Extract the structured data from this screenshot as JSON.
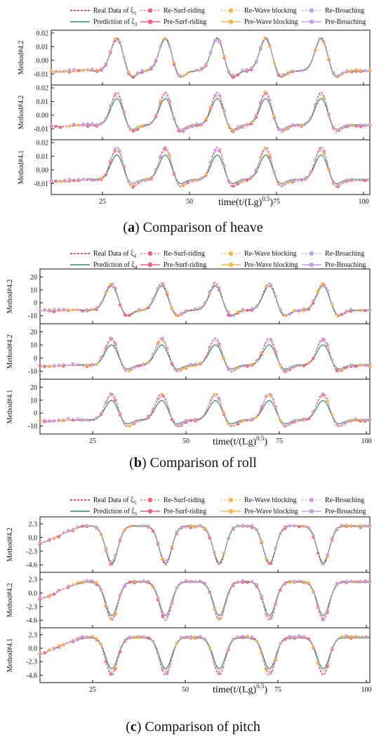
{
  "legend": {
    "real": "Real Data of ξ",
    "pred": "Prediction of ξ",
    "re_surf": "Re-Surf-riding",
    "re_wave": "Re-Wave blocking",
    "re_broach": "Re-Broaching",
    "pre_surf": "Pre-Surf-riding",
    "pre_wave": "Pre-Wave blocking",
    "pre_broach": "Pre-Broaching"
  },
  "colors": {
    "real": "#c2185b",
    "pred": "#2e8b6e",
    "surf": "#f0607a",
    "wave": "#f5b84a",
    "broach": "#c9a0e8"
  },
  "xlabel": "time(t/(Lg)",
  "xlabel_sup": "0.5",
  "captions": [
    {
      "letter": "a",
      "open": "(",
      "close": ")",
      "text": " Comparison of heave"
    },
    {
      "letter": "b",
      "open": "(",
      "close": ")",
      "text": " Comparison of roll"
    },
    {
      "letter": "c",
      "open": "(",
      "close": ")",
      "text": " Comparison of pitch"
    }
  ],
  "chart_data": [
    {
      "type": "line",
      "title": "",
      "variable_subscript": "3",
      "x_ticks": [
        "25",
        "50",
        "75",
        "100"
      ],
      "xlim": [
        8,
        100
      ],
      "ylim": [
        -0.016,
        0.02
      ],
      "y_ticks": [
        "0.02",
        "0.01",
        "0.00",
        "-0.01"
      ],
      "y_tick_values": [
        0.02,
        0.01,
        0.0,
        -0.01
      ],
      "panels": [
        {
          "label": "Method#4.2",
          "match": 0.97
        },
        {
          "label": "Method#4.2",
          "match": 0.78
        },
        {
          "label": "Method#4.1",
          "match": 0.72
        }
      ],
      "signal": {
        "peak_times": [
          27,
          41,
          56,
          70,
          86
        ],
        "peak": 0.017,
        "trough": -0.014,
        "baseline": -0.008
      }
    },
    {
      "type": "line",
      "title": "",
      "variable_subscript": "4",
      "x_ticks": [
        "25",
        "50",
        "75",
        "100"
      ],
      "xlim": [
        8,
        100
      ],
      "ylim": [
        -14,
        24
      ],
      "y_ticks": [
        "20",
        "10",
        "0",
        "-10"
      ],
      "y_tick_values": [
        20,
        10,
        0,
        -10
      ],
      "panels": [
        {
          "label": "Method#4.2",
          "match": 0.88
        },
        {
          "label": "Method#4.2",
          "match": 0.72
        },
        {
          "label": "Method#4.1",
          "match": 0.7
        }
      ],
      "signal": {
        "peak_times": [
          28,
          42,
          57,
          72,
          87
        ],
        "peak": 15.5,
        "trough": -12,
        "baseline": -6
      }
    },
    {
      "type": "line",
      "title": "",
      "variable_subscript": "5",
      "x_ticks": [
        "25",
        "50",
        "75",
        "100"
      ],
      "xlim": [
        8,
        100
      ],
      "ylim": [
        -5.4,
        3.0
      ],
      "y_ticks": [
        "2.3",
        "0.0",
        "-2.3",
        "-4.6"
      ],
      "y_tick_values": [
        2.3,
        0.0,
        -2.3,
        -4.6
      ],
      "panels": [
        {
          "label": "Method#4.2",
          "match": 0.95
        },
        {
          "label": "Method#4.2",
          "match": 0.85
        },
        {
          "label": "Method#4.1",
          "match": 0.8
        }
      ],
      "signal": {
        "trough_times": [
          28,
          43,
          58,
          72,
          87
        ],
        "top": 2.0,
        "trough": -4.6
      }
    }
  ]
}
